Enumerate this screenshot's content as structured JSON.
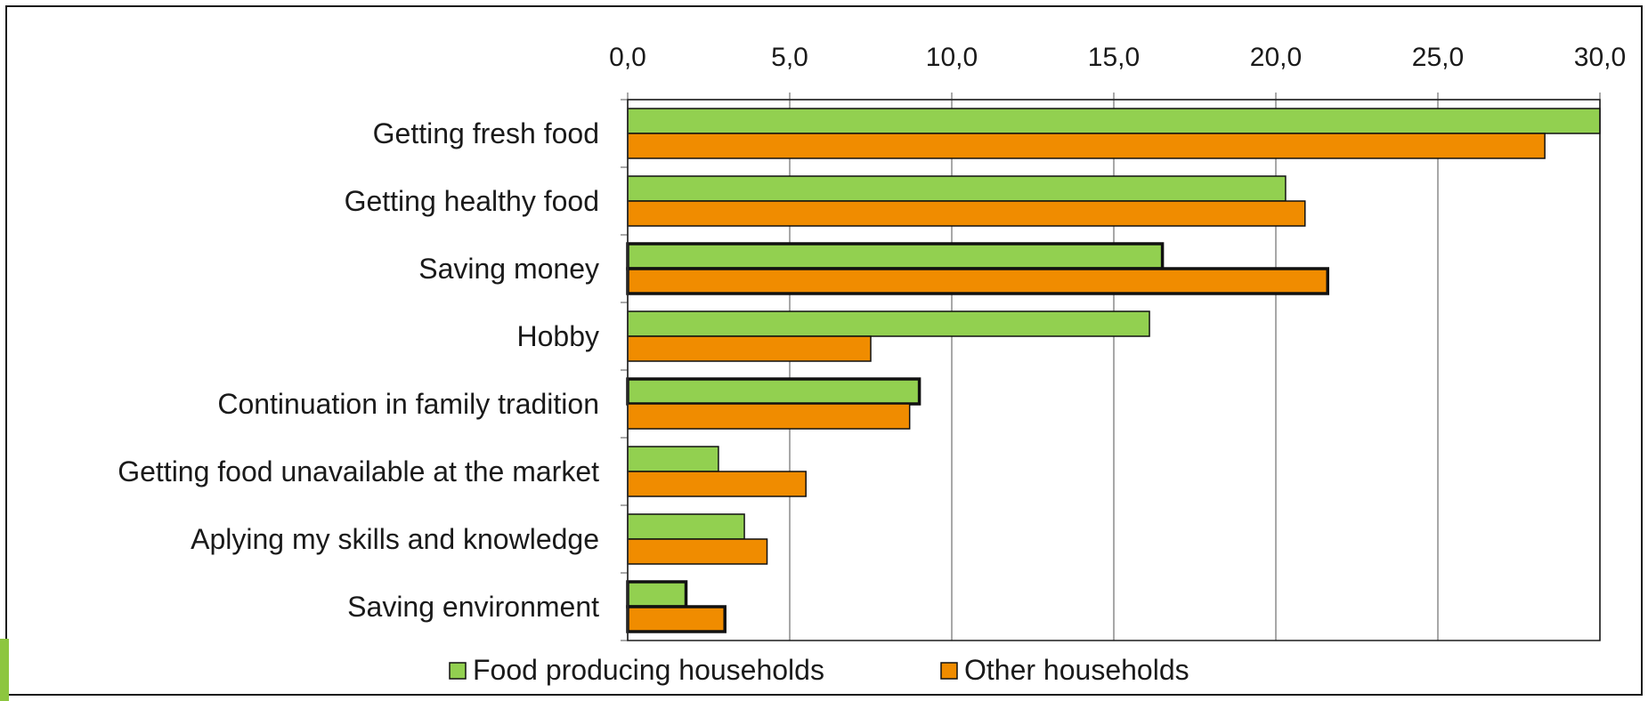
{
  "chart_data": {
    "type": "bar",
    "orientation": "horizontal",
    "categories": [
      "Getting fresh food",
      "Getting healthy food",
      "Saving money",
      "Hobby",
      "Continuation in family tradition",
      "Getting food unavailable at the market",
      "Aplying my skills and knowledge",
      "Saving environment"
    ],
    "series": [
      {
        "name": "Food producing households",
        "color": "#92d050",
        "values": [
          30.0,
          20.3,
          16.5,
          16.1,
          9.0,
          2.8,
          3.6,
          1.8
        ],
        "emphasized": [
          false,
          false,
          true,
          false,
          true,
          false,
          false,
          true
        ]
      },
      {
        "name": "Other households",
        "color": "#f08c00",
        "values": [
          28.3,
          20.9,
          21.6,
          7.5,
          8.7,
          5.5,
          4.3,
          3.0
        ],
        "emphasized": [
          false,
          false,
          true,
          false,
          false,
          false,
          false,
          true
        ]
      }
    ],
    "xlim": [
      0,
      30
    ],
    "xticks": [
      "0,0",
      "5,0",
      "10,0",
      "15,0",
      "20,0",
      "25,0",
      "30,0"
    ],
    "axis_position": "top",
    "grid": true,
    "legend_position": "bottom"
  }
}
